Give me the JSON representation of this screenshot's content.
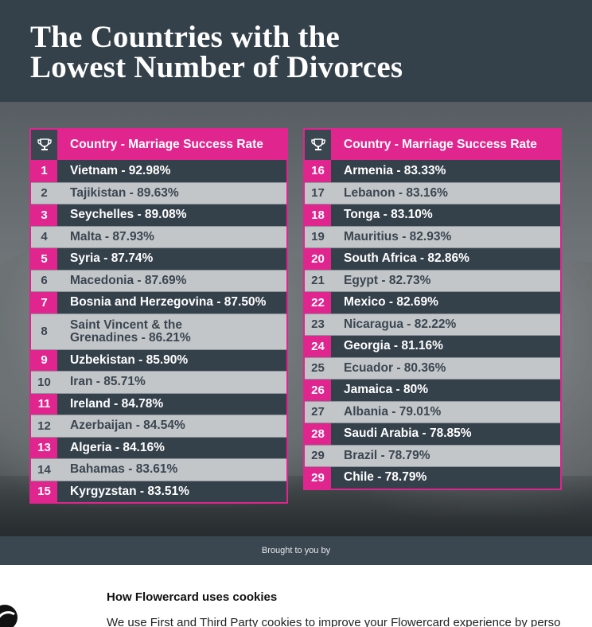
{
  "title": {
    "line1": "The Countries with the",
    "line2": "Lowest Number of Divorces"
  },
  "table_header": "Country - Marriage Success Rate",
  "left_rows": [
    {
      "rank": "1",
      "text": "Vietnam - 92.98%"
    },
    {
      "rank": "2",
      "text": "Tajikistan - 89.63%"
    },
    {
      "rank": "3",
      "text": "Seychelles - 89.08%"
    },
    {
      "rank": "4",
      "text": "Malta - 87.93%"
    },
    {
      "rank": "5",
      "text": "Syria - 87.74%"
    },
    {
      "rank": "6",
      "text": "Macedonia - 87.69%"
    },
    {
      "rank": "7",
      "text": "Bosnia and Herzegovina - 87.50%"
    },
    {
      "rank": "8",
      "text": "Saint Vincent & the\nGrenadines - 86.21%"
    },
    {
      "rank": "9",
      "text": "Uzbekistan - 85.90%"
    },
    {
      "rank": "10",
      "text": "Iran - 85.71%"
    },
    {
      "rank": "11",
      "text": "Ireland - 84.78%"
    },
    {
      "rank": "12",
      "text": "Azerbaijan - 84.54%"
    },
    {
      "rank": "13",
      "text": "Algeria - 84.16%"
    },
    {
      "rank": "14",
      "text": "Bahamas - 83.61%"
    },
    {
      "rank": "15",
      "text": "Kyrgyzstan - 83.51%"
    }
  ],
  "right_rows": [
    {
      "rank": "16",
      "text": "Armenia - 83.33%"
    },
    {
      "rank": "17",
      "text": "Lebanon - 83.16%"
    },
    {
      "rank": "18",
      "text": "Tonga - 83.10%"
    },
    {
      "rank": "19",
      "text": "Mauritius - 82.93%"
    },
    {
      "rank": "20",
      "text": "South Africa - 82.86%"
    },
    {
      "rank": "21",
      "text": "Egypt - 82.73%"
    },
    {
      "rank": "22",
      "text": "Mexico - 82.69%"
    },
    {
      "rank": "23",
      "text": "Nicaragua - 82.22%"
    },
    {
      "rank": "24",
      "text": "Georgia - 81.16%"
    },
    {
      "rank": "25",
      "text": "Ecuador - 80.36%"
    },
    {
      "rank": "26",
      "text": "Jamaica - 80%"
    },
    {
      "rank": "27",
      "text": "Albania - 79.01%"
    },
    {
      "rank": "28",
      "text": "Saudi Arabia - 78.85%"
    },
    {
      "rank": "29",
      "text": "Brazil - 78.79%"
    },
    {
      "rank": "29",
      "text": "Chile - 78.79%"
    }
  ],
  "footer": {
    "brought_by": "Brought to you by"
  },
  "cookie": {
    "title": "How Flowercard uses cookies",
    "body": "We use First and Third Party cookies to improve your Flowercard experience by perso"
  },
  "icons": {
    "header": "trophy-icon",
    "cookie_logo": "flowercard-logo-icon"
  },
  "colors": {
    "accent": "#e0258f",
    "dark_row": "#34404a",
    "light_row": "#c3c6c9"
  }
}
